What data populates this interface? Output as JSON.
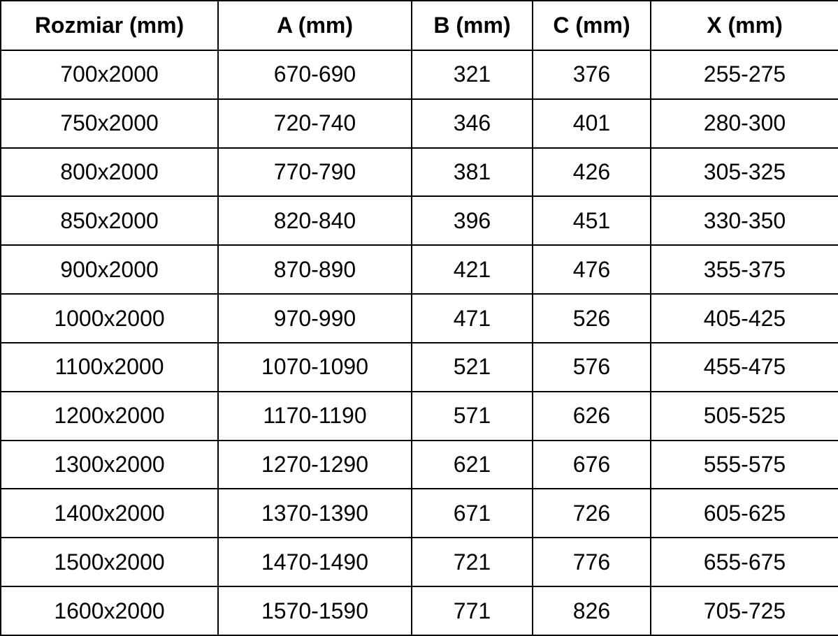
{
  "table": {
    "columns": [
      {
        "label": "Rozmiar (mm)"
      },
      {
        "label": "A (mm)"
      },
      {
        "label": "B (mm)"
      },
      {
        "label": "C (mm)"
      },
      {
        "label": "X (mm)"
      }
    ],
    "rows": [
      [
        "700x2000",
        "670-690",
        "321",
        "376",
        "255-275"
      ],
      [
        "750x2000",
        "720-740",
        "346",
        "401",
        "280-300"
      ],
      [
        "800x2000",
        "770-790",
        "381",
        "426",
        "305-325"
      ],
      [
        "850x2000",
        "820-840",
        "396",
        "451",
        "330-350"
      ],
      [
        "900x2000",
        "870-890",
        "421",
        "476",
        "355-375"
      ],
      [
        "1000x2000",
        "970-990",
        "471",
        "526",
        "405-425"
      ],
      [
        "1100x2000",
        "1070-1090",
        "521",
        "576",
        "455-475"
      ],
      [
        "1200x2000",
        "1170-1190",
        "571",
        "626",
        "505-525"
      ],
      [
        "1300x2000",
        "1270-1290",
        "621",
        "676",
        "555-575"
      ],
      [
        "1400x2000",
        "1370-1390",
        "671",
        "726",
        "605-625"
      ],
      [
        "1500x2000",
        "1470-1490",
        "721",
        "776",
        "655-675"
      ],
      [
        "1600x2000",
        "1570-1590",
        "771",
        "826",
        "705-725"
      ]
    ],
    "style": {
      "text_color": "#000000",
      "border_color": "#000000",
      "background_color": "#ffffff"
    }
  }
}
